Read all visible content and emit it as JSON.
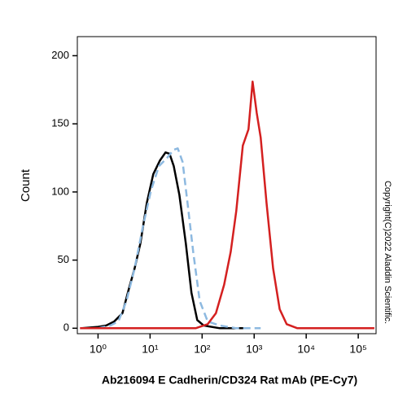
{
  "chart_data": {
    "type": "line",
    "xlabel": "Ab216094 E Cadherin/CD324 Rat mAb (PE-Cy7)",
    "ylabel": "Count",
    "annotation": "Copyright(C)2022 Aladdin Scientific.",
    "xscale": "log",
    "xlim": [
      0.4,
      220000
    ],
    "ylim": [
      -4,
      214
    ],
    "xticks": [
      {
        "value": 1,
        "label": "10⁰"
      },
      {
        "value": 10,
        "label": "10¹"
      },
      {
        "value": 100,
        "label": "10²"
      },
      {
        "value": 1000,
        "label": "10³"
      },
      {
        "value": 10000,
        "label": "10⁴"
      },
      {
        "value": 100000,
        "label": "10⁵"
      }
    ],
    "yticks": [
      0,
      50,
      100,
      150,
      200
    ],
    "series": [
      {
        "color": "#000000",
        "dash": false,
        "x": [
          0.49,
          1,
          1.43,
          2.05,
          2.94,
          3.92,
          5.05,
          6.49,
          8.66,
          11.5,
          15.4,
          19.8,
          23.7,
          28.5,
          36.5,
          48.7,
          62.4,
          80.6,
          107,
          219,
          648
        ],
        "values": [
          0,
          1,
          2,
          5,
          11,
          29,
          44,
          62,
          92,
          113,
          123,
          129,
          128,
          119,
          98,
          62,
          26,
          6,
          2,
          0,
          0
        ]
      },
      {
        "color": "#8db9e0",
        "dash": true,
        "x": [
          1,
          1.72,
          2.46,
          3.52,
          5.05,
          7.22,
          10.4,
          14.8,
          21.2,
          28.5,
          34.0,
          42.2,
          52.4,
          67.4,
          89.9,
          128,
          219,
          453,
          1334
        ],
        "values": [
          0,
          2,
          5,
          20,
          44,
          74,
          101,
          119,
          125,
          131,
          132,
          122,
          92,
          56,
          20,
          5,
          2,
          0,
          0
        ]
      },
      {
        "color": "#d42020",
        "dash": false,
        "x": [
          0.45,
          75,
          128,
          184,
          265,
          354,
          453,
          605,
          778,
          933,
          1120,
          1334,
          1728,
          2310,
          3090,
          4210,
          6770,
          204000
        ],
        "values": [
          0,
          0,
          3,
          11,
          32,
          56,
          86,
          134,
          146,
          181,
          158,
          140,
          92,
          44,
          14,
          3,
          0,
          0
        ]
      }
    ]
  }
}
